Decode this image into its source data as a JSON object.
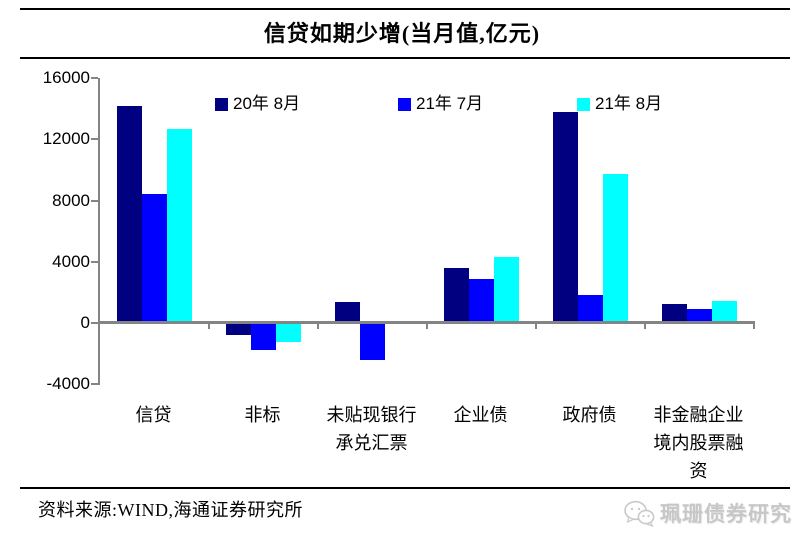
{
  "page": {
    "title": "信贷如期少增(当月值,亿元)",
    "source_note": "资料来源:WIND,海通证券研究所",
    "watermark": "珮珊债券研究"
  },
  "chart_data": {
    "type": "bar",
    "title": "信贷如期少增(当月值,亿元)",
    "unit": "亿元",
    "categories": [
      "信贷",
      "非标",
      "未贴现银行承兑汇票",
      "企业债",
      "政府债",
      "非金融企业境内股票融资"
    ],
    "category_lines": [
      [
        "信贷"
      ],
      [
        "非标"
      ],
      [
        "未贴现银行",
        "承兑汇票"
      ],
      [
        "企业债"
      ],
      [
        "政府债"
      ],
      [
        "非金融企业",
        "境内股票融",
        "资"
      ]
    ],
    "series": [
      {
        "name": "20年 8月",
        "color": "#000080",
        "values": [
          14200,
          -800,
          1400,
          3600,
          13800,
          1250
        ]
      },
      {
        "name": "21年 7月",
        "color": "#0000ff",
        "values": [
          8400,
          -1750,
          -2400,
          2900,
          1800,
          900
        ]
      },
      {
        "name": "21年 8月",
        "color": "#00ffff",
        "values": [
          12700,
          -1250,
          130,
          4300,
          9700,
          1450
        ]
      }
    ],
    "ylim": [
      -4000,
      16000
    ],
    "yticks": [
      16000,
      12000,
      8000,
      4000,
      0,
      -4000
    ],
    "legend_position": "top",
    "grid": false,
    "axis_color": "#848484"
  }
}
